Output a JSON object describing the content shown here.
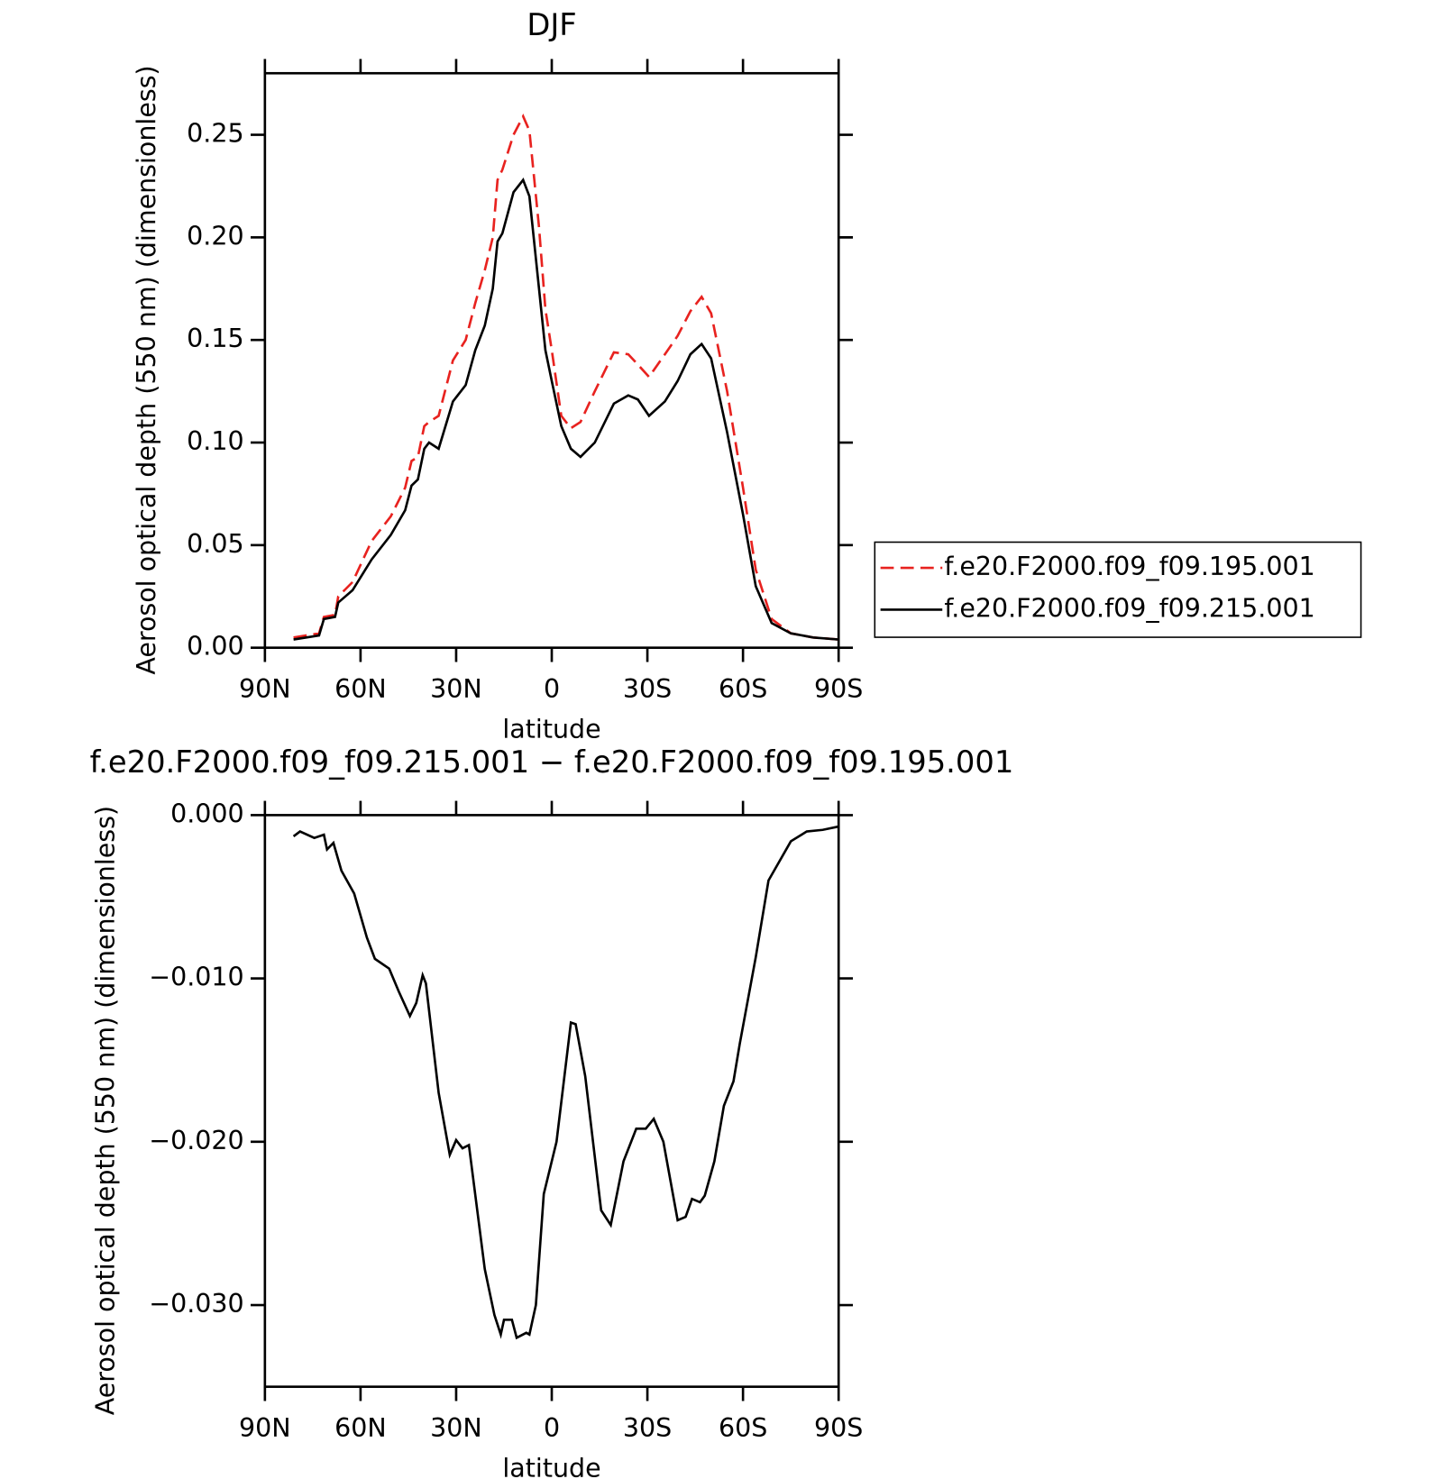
{
  "chart_data": [
    {
      "type": "line",
      "title": "DJF",
      "x_label": "latitude",
      "y_label": "Aerosol optical depth (550 nm) (dimensionless)",
      "x": [
        81,
        73,
        71.5,
        68,
        67,
        62.5,
        56.5,
        50.5,
        46,
        44,
        42,
        40,
        38.5,
        35.5,
        31,
        27,
        24,
        21,
        18.5,
        17,
        15.5,
        12,
        9,
        7,
        4,
        2,
        0,
        -3,
        -6,
        -9,
        -13.5,
        -19.5,
        -24,
        -27,
        -30.5,
        -35.5,
        -39.5,
        -43.5,
        -47,
        -50,
        -55,
        -60,
        -64,
        -69,
        -75,
        -82,
        -90
      ],
      "series": [
        {
          "name": "f.e20.F2000.f09_f09.195.001",
          "color": "#e8221f",
          "dashed": true,
          "values": [
            0.005,
            0.007,
            0.015,
            0.016,
            0.025,
            0.032,
            0.052,
            0.064,
            0.078,
            0.091,
            0.093,
            0.108,
            0.11,
            0.113,
            0.14,
            0.15,
            0.168,
            0.184,
            0.2,
            0.228,
            0.233,
            0.25,
            0.259,
            0.252,
            0.205,
            0.165,
            0.145,
            0.113,
            0.107,
            0.11,
            0.125,
            0.144,
            0.143,
            0.138,
            0.132,
            0.143,
            0.152,
            0.164,
            0.171,
            0.163,
            0.125,
            0.078,
            0.038,
            0.014,
            0.007,
            0.005,
            0.004
          ]
        },
        {
          "name": "f.e20.F2000.f09_f09.215.001",
          "color": "#000000",
          "dashed": false,
          "values": [
            0.004,
            0.006,
            0.014,
            0.015,
            0.022,
            0.028,
            0.043,
            0.055,
            0.067,
            0.079,
            0.082,
            0.097,
            0.1,
            0.097,
            0.12,
            0.128,
            0.145,
            0.157,
            0.175,
            0.198,
            0.202,
            0.222,
            0.228,
            0.22,
            0.175,
            0.145,
            0.13,
            0.108,
            0.097,
            0.093,
            0.1,
            0.119,
            0.123,
            0.121,
            0.113,
            0.12,
            0.13,
            0.143,
            0.148,
            0.141,
            0.105,
            0.065,
            0.03,
            0.012,
            0.007,
            0.005,
            0.004
          ]
        }
      ],
      "xlim": [
        90,
        -90
      ],
      "xticks": [
        {
          "value": 90,
          "label": "90N"
        },
        {
          "value": 60,
          "label": "60N"
        },
        {
          "value": 30,
          "label": "30N"
        },
        0,
        {
          "value": -30,
          "label": "30S"
        },
        {
          "value": -60,
          "label": "60S"
        },
        {
          "value": -90,
          "label": "90S"
        }
      ],
      "ylim": [
        0,
        0.28
      ],
      "yticks": [
        {
          "value": 0,
          "label": "0.00"
        },
        0.05,
        {
          "value": 0.1,
          "label": "0.10"
        },
        0.15,
        {
          "value": 0.2,
          "label": "0.20"
        },
        0.25
      ],
      "legend": "right"
    },
    {
      "type": "line",
      "title": "f.e20.F2000.f09_f09.215.001 − f.e20.F2000.f09_f09.195.001",
      "x_label": "latitude",
      "y_label": "Aerosol optical depth (550 nm) (dimensionless)",
      "color": "#000000",
      "x": [
        81,
        79,
        74.5,
        71.5,
        70.5,
        68.5,
        66,
        62,
        58,
        55.5,
        51,
        48,
        44.5,
        42.5,
        40.5,
        39.5,
        35.5,
        32,
        30,
        28,
        26,
        21,
        18,
        16,
        15,
        12.5,
        11,
        8,
        7,
        5,
        2.5,
        -1.5,
        -6,
        -7.5,
        -10.5,
        -15.5,
        -18.5,
        -22.5,
        -26.5,
        -29.5,
        -32,
        -35,
        -39.5,
        -42,
        -44,
        -46.5,
        -48,
        -51,
        -54,
        -57,
        -59,
        -64,
        -68,
        -75,
        -80,
        -85,
        -90
      ],
      "values": [
        -0.0013,
        -0.001,
        -0.0014,
        -0.0012,
        -0.0021,
        -0.0017,
        -0.0034,
        -0.0048,
        -0.0075,
        -0.0088,
        -0.0094,
        -0.0108,
        -0.0123,
        -0.0115,
        -0.0098,
        -0.0103,
        -0.017,
        -0.0208,
        -0.0199,
        -0.0204,
        -0.0202,
        -0.0278,
        -0.0306,
        -0.0318,
        -0.0309,
        -0.0309,
        -0.032,
        -0.0317,
        -0.0318,
        -0.03,
        -0.0232,
        -0.02,
        -0.0127,
        -0.0128,
        -0.016,
        -0.0242,
        -0.0251,
        -0.0212,
        -0.0192,
        -0.0192,
        -0.0186,
        -0.02,
        -0.0248,
        -0.0246,
        -0.0235,
        -0.0237,
        -0.0233,
        -0.0212,
        -0.0178,
        -0.0163,
        -0.014,
        -0.0087,
        -0.004,
        -0.0016,
        -0.001,
        -0.0009,
        -0.0007
      ],
      "xlim": [
        90,
        -90
      ],
      "xticks": [
        {
          "value": 90,
          "label": "90N"
        },
        {
          "value": 60,
          "label": "60N"
        },
        {
          "value": 30,
          "label": "30N"
        },
        0,
        {
          "value": -30,
          "label": "30S"
        },
        {
          "value": -60,
          "label": "60S"
        },
        {
          "value": -90,
          "label": "90S"
        }
      ],
      "ylim": [
        -0.035,
        0
      ],
      "yticks": [
        {
          "value": 0,
          "label": "0.000"
        },
        {
          "value": -0.01,
          "label": "−0.010"
        },
        {
          "value": -0.02,
          "label": "−0.020"
        },
        {
          "value": -0.03,
          "label": "−0.030"
        }
      ]
    }
  ]
}
